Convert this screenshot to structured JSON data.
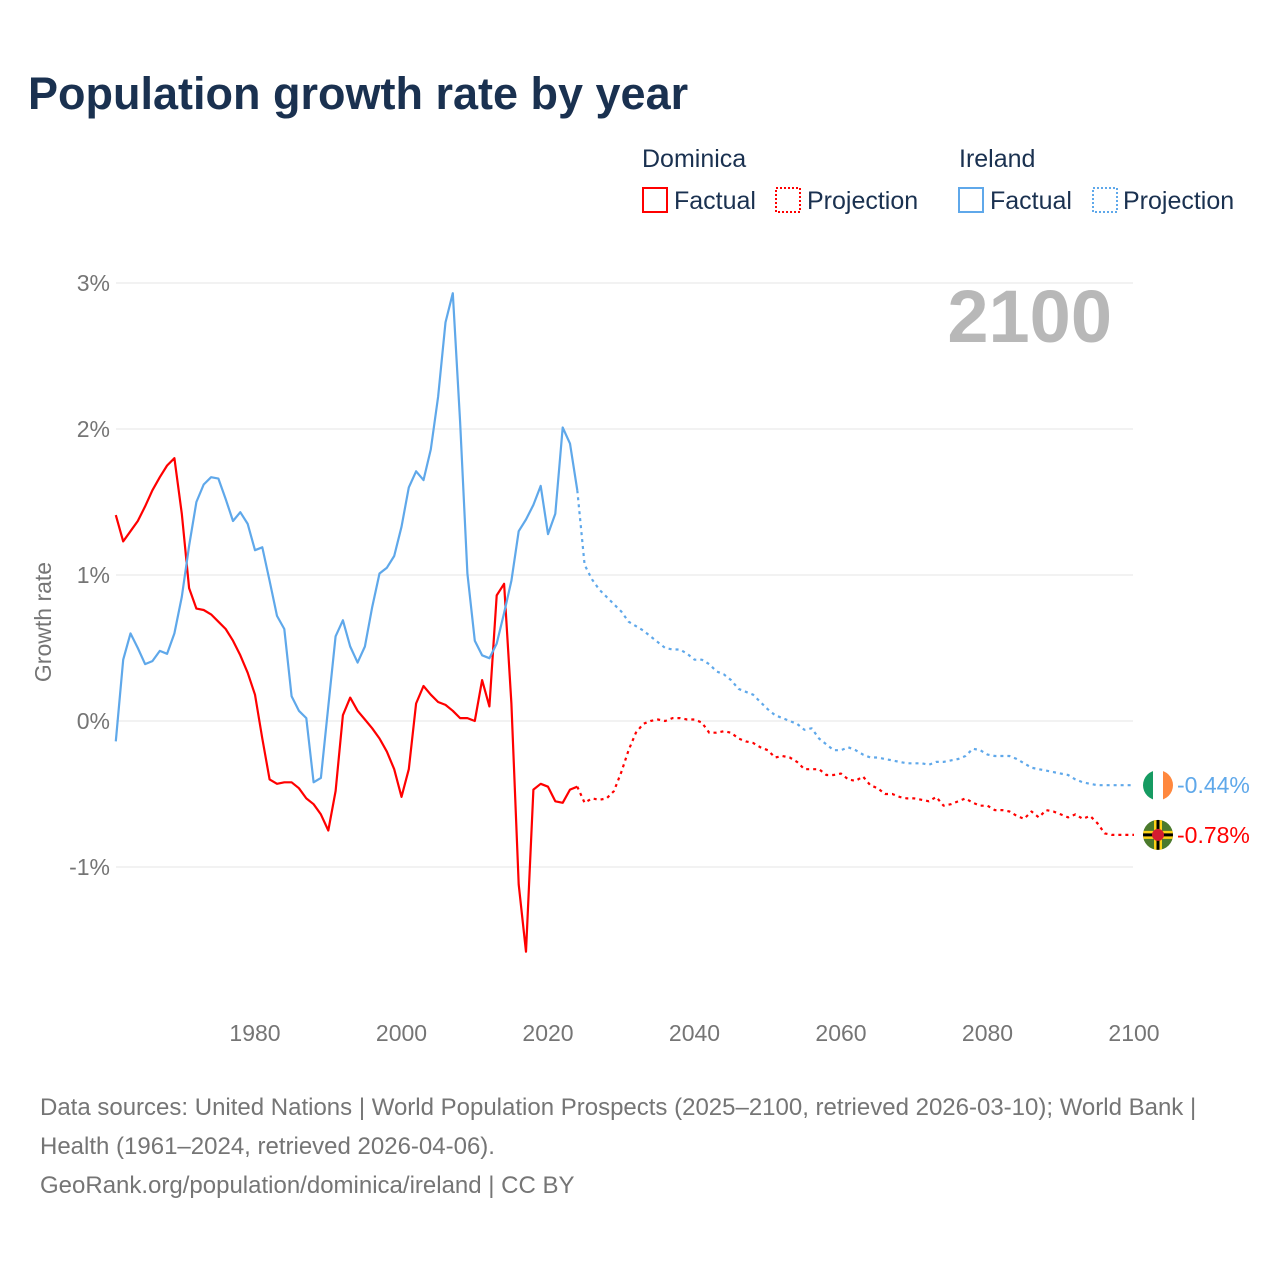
{
  "title": "Population growth rate by year",
  "watermark_year": "2100",
  "legend": {
    "groups": [
      {
        "name": "Dominica",
        "color": "#ff0000",
        "factual": "Factual",
        "projection": "Projection"
      },
      {
        "name": "Ireland",
        "color": "#5fa8ea",
        "factual": "Factual",
        "projection": "Projection"
      }
    ]
  },
  "footer": {
    "sources": "Data sources: United Nations | World Population Prospects (2025–2100, retrieved 2026-03-10); World Bank | Health (1961–2024, retrieved 2026-04-06).",
    "credit": "GeoRank.org/population/dominica/ireland | CC BY"
  },
  "chart_data": {
    "type": "line",
    "title": "Population growth rate by year",
    "xlabel": "",
    "ylabel": "Growth rate",
    "xlim": [
      1961,
      2100
    ],
    "ylim": [
      -1.9,
      3.1
    ],
    "x_ticks": [
      1980,
      2000,
      2020,
      2040,
      2060,
      2080,
      2100
    ],
    "x_tick_labels": [
      "1980",
      "2000",
      "2020",
      "2040",
      "2060",
      "2080",
      "2100"
    ],
    "y_ticks": [
      3,
      2,
      1,
      0,
      -1
    ],
    "y_tick_labels": [
      "3%",
      "2%",
      "1%",
      "0%",
      "-1%"
    ],
    "grid": true,
    "legend_position": "top-right",
    "series": [
      {
        "name": "Dominica",
        "kind": "Factual",
        "start_year": 1961,
        "color": "#ff0000",
        "values": [
          1.41,
          1.23,
          1.3,
          1.37,
          1.47,
          1.58,
          1.67,
          1.75,
          1.8,
          1.42,
          0.91,
          0.77,
          0.76,
          0.73,
          0.68,
          0.63,
          0.55,
          0.45,
          0.33,
          0.18,
          -0.12,
          -0.4,
          -0.43,
          -0.42,
          -0.42,
          -0.46,
          -0.53,
          -0.57,
          -0.64,
          -0.75,
          -0.48,
          0.04,
          0.16,
          0.07,
          0.01,
          -0.05,
          -0.12,
          -0.21,
          -0.33,
          -0.52,
          -0.33,
          0.12,
          0.24,
          0.18,
          0.13,
          0.11,
          0.07,
          0.02,
          0.02,
          0.0,
          0.28,
          0.1,
          0.86,
          0.94,
          0.12,
          -1.12,
          -1.58,
          -0.47,
          -0.43,
          -0.45,
          -0.55,
          -0.56,
          -0.47,
          -0.45
        ]
      },
      {
        "name": "Dominica",
        "kind": "Projection",
        "start_year": 2024,
        "color": "#ff0000",
        "values": [
          -0.45,
          -0.56,
          -0.53,
          -0.54,
          -0.53,
          -0.48,
          -0.35,
          -0.2,
          -0.08,
          -0.02,
          0.0,
          0.01,
          0.0,
          0.02,
          0.02,
          0.01,
          0.01,
          -0.01,
          -0.08,
          -0.08,
          -0.07,
          -0.08,
          -0.12,
          -0.14,
          -0.15,
          -0.18,
          -0.2,
          -0.25,
          -0.24,
          -0.25,
          -0.28,
          -0.33,
          -0.33,
          -0.33,
          -0.37,
          -0.37,
          -0.36,
          -0.4,
          -0.41,
          -0.38,
          -0.44,
          -0.46,
          -0.5,
          -0.5,
          -0.52,
          -0.53,
          -0.53,
          -0.54,
          -0.55,
          -0.52,
          -0.58,
          -0.57,
          -0.55,
          -0.53,
          -0.56,
          -0.58,
          -0.58,
          -0.61,
          -0.61,
          -0.62,
          -0.65,
          -0.67,
          -0.62,
          -0.66,
          -0.61,
          -0.62,
          -0.64,
          -0.66,
          -0.64,
          -0.67,
          -0.65,
          -0.7,
          -0.77,
          -0.78,
          -0.78,
          -0.78,
          -0.78
        ]
      },
      {
        "name": "Ireland",
        "kind": "Factual",
        "start_year": 1961,
        "color": "#5fa8ea",
        "values": [
          -0.14,
          0.42,
          0.6,
          0.5,
          0.39,
          0.41,
          0.48,
          0.46,
          0.6,
          0.85,
          1.2,
          1.5,
          1.62,
          1.67,
          1.66,
          1.52,
          1.37,
          1.43,
          1.35,
          1.17,
          1.19,
          0.96,
          0.72,
          0.63,
          0.17,
          0.07,
          0.02,
          -0.42,
          -0.39,
          0.1,
          0.58,
          0.69,
          0.51,
          0.4,
          0.51,
          0.78,
          1.01,
          1.05,
          1.13,
          1.33,
          1.6,
          1.71,
          1.65,
          1.86,
          2.22,
          2.73,
          2.93,
          2.05,
          1.01,
          0.55,
          0.45,
          0.43,
          0.53,
          0.74,
          0.96,
          1.3,
          1.38,
          1.48,
          1.61,
          1.28,
          1.42,
          2.01,
          1.9,
          1.58
        ]
      },
      {
        "name": "Ireland",
        "kind": "Projection",
        "start_year": 2024,
        "color": "#5fa8ea",
        "values": [
          1.58,
          1.07,
          0.97,
          0.9,
          0.85,
          0.8,
          0.75,
          0.68,
          0.65,
          0.62,
          0.58,
          0.54,
          0.5,
          0.49,
          0.49,
          0.46,
          0.42,
          0.42,
          0.39,
          0.34,
          0.32,
          0.28,
          0.22,
          0.2,
          0.18,
          0.13,
          0.08,
          0.04,
          0.02,
          0.0,
          -0.02,
          -0.06,
          -0.05,
          -0.12,
          -0.16,
          -0.2,
          -0.2,
          -0.18,
          -0.2,
          -0.23,
          -0.25,
          -0.25,
          -0.26,
          -0.27,
          -0.28,
          -0.29,
          -0.29,
          -0.29,
          -0.3,
          -0.28,
          -0.28,
          -0.27,
          -0.26,
          -0.24,
          -0.19,
          -0.2,
          -0.23,
          -0.24,
          -0.24,
          -0.24,
          -0.26,
          -0.29,
          -0.32,
          -0.33,
          -0.34,
          -0.35,
          -0.36,
          -0.37,
          -0.4,
          -0.42,
          -0.43,
          -0.44,
          -0.44,
          -0.44,
          -0.44,
          -0.44,
          -0.44
        ]
      }
    ],
    "end_labels": [
      {
        "name": "Ireland",
        "text": "-0.44%",
        "value": -0.44,
        "color": "#5fa8ea"
      },
      {
        "name": "Dominica",
        "text": "-0.78%",
        "value": -0.78,
        "color": "#ff0000"
      }
    ]
  }
}
